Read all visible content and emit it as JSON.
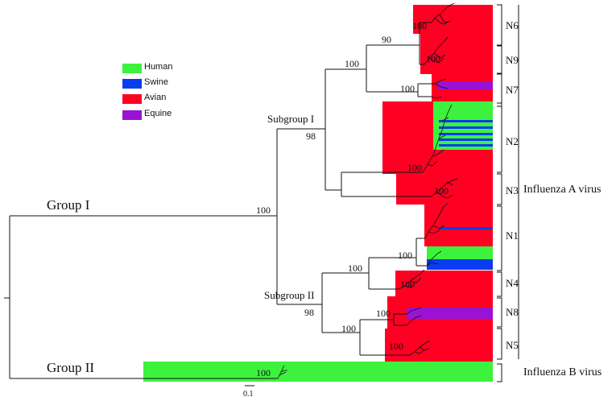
{
  "legend": {
    "items": [
      {
        "label": "Human",
        "color": "#3df23d"
      },
      {
        "label": "Swine",
        "color": "#0a3cf0"
      },
      {
        "label": "Avian",
        "color": "#ff0022"
      },
      {
        "label": "Equine",
        "color": "#9a12d4"
      }
    ]
  },
  "groups": {
    "group_1": "Group I",
    "group_2": "Group II",
    "subgroup_1": "Subgroup I",
    "subgroup_2": "Subgroup II"
  },
  "clades": [
    "N6",
    "N9",
    "N7",
    "N2",
    "N3",
    "N1",
    "N4",
    "N8",
    "N5"
  ],
  "viruses": {
    "influenza_a": "Influenza A virus",
    "influenza_b": "Influenza B virus"
  },
  "bootstrap": {
    "group_1_node": "100",
    "subgroup_1_node": "98",
    "subgroup_2_node": "98",
    "n6_n9_n7_node": "100",
    "n6_n9_node": "90",
    "n6": "100",
    "n9": "100",
    "n7": "100",
    "n2": "100",
    "n3": "100",
    "n1": "100",
    "n4_n1_node": "100",
    "n4": "100",
    "n8": "100",
    "n8_n5_node": "100",
    "n5": "100",
    "influenza_b": "100"
  },
  "scale_bar": "0.1"
}
